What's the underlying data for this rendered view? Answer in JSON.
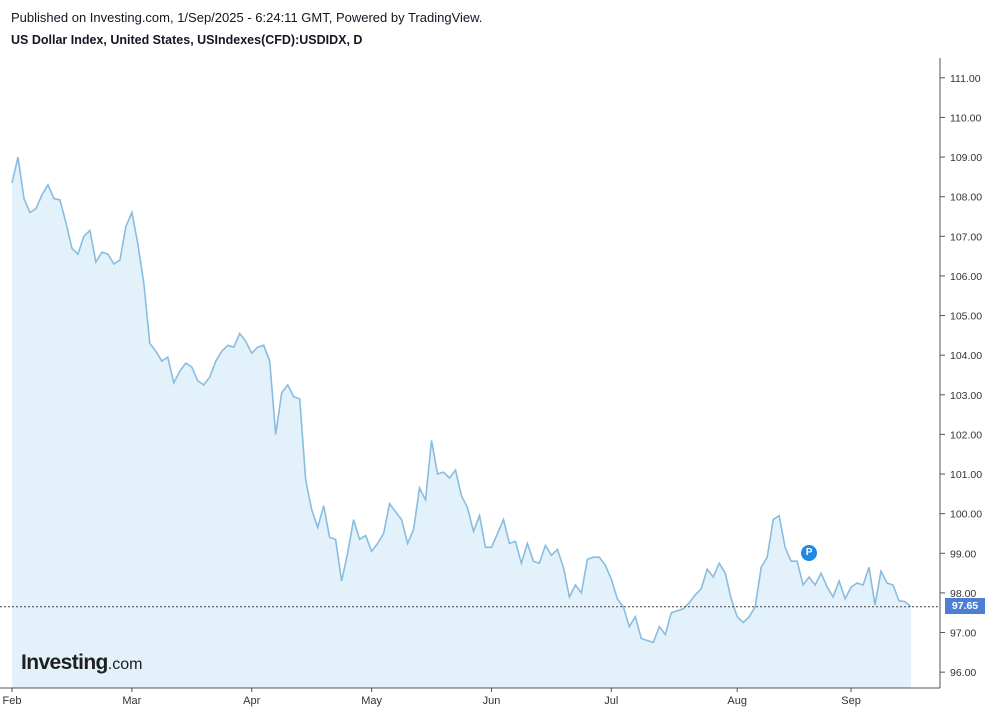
{
  "header": {
    "published": "Published on Investing.com, 1/Sep/2025 - 6:24:11 GMT, Powered by TradingView.",
    "title": "US Dollar Index, United States, USIndexes(CFD):USDIDX, D"
  },
  "logo": {
    "main": "Investing",
    "suffix": ".com"
  },
  "marker": {
    "label": "P"
  },
  "colors": {
    "line": "#88bde0",
    "fill": "#e3f1fa",
    "last_label_bg": "#4c7fd4",
    "marker": "#1e88e5"
  },
  "chart_data": {
    "type": "area",
    "ylim": [
      95.6,
      111.5
    ],
    "y_ticks": [
      "96.00",
      "97.00",
      "98.00",
      "99.00",
      "100.00",
      "101.00",
      "102.00",
      "103.00",
      "104.00",
      "105.00",
      "106.00",
      "107.00",
      "108.00",
      "109.00",
      "110.00",
      "111.00"
    ],
    "x_ticks": [
      {
        "label": "Feb",
        "index": 0
      },
      {
        "label": "Mar",
        "index": 20
      },
      {
        "label": "Apr",
        "index": 40
      },
      {
        "label": "May",
        "index": 60
      },
      {
        "label": "Jun",
        "index": 80
      },
      {
        "label": "Jul",
        "index": 100
      },
      {
        "label": "Aug",
        "index": 121
      },
      {
        "label": "Sep",
        "index": 140
      }
    ],
    "last_value": "97.65",
    "marker_index": 133,
    "marker_value": 99.0,
    "values": [
      108.35,
      109.0,
      107.95,
      107.6,
      107.7,
      108.05,
      108.3,
      107.95,
      107.92,
      107.35,
      106.7,
      106.55,
      107.0,
      107.15,
      106.35,
      106.6,
      106.55,
      106.3,
      106.4,
      107.25,
      107.6,
      106.8,
      105.8,
      104.3,
      104.1,
      103.85,
      103.95,
      103.3,
      103.6,
      103.8,
      103.7,
      103.35,
      103.25,
      103.45,
      103.85,
      104.1,
      104.25,
      104.2,
      104.55,
      104.35,
      104.05,
      104.2,
      104.25,
      103.85,
      102.0,
      103.05,
      103.25,
      102.95,
      102.9,
      100.85,
      100.1,
      99.65,
      100.2,
      99.4,
      99.35,
      98.3,
      99.0,
      99.85,
      99.35,
      99.45,
      99.05,
      99.25,
      99.5,
      100.25,
      100.05,
      99.85,
      99.25,
      99.6,
      100.65,
      100.35,
      101.85,
      101.0,
      101.05,
      100.9,
      101.1,
      100.45,
      100.15,
      99.55,
      99.95,
      99.15,
      99.15,
      99.5,
      99.85,
      99.25,
      99.3,
      98.75,
      99.25,
      98.8,
      98.75,
      99.2,
      98.95,
      99.1,
      98.65,
      97.9,
      98.2,
      98.0,
      98.85,
      98.9,
      98.9,
      98.7,
      98.35,
      97.85,
      97.65,
      97.15,
      97.4,
      96.85,
      96.8,
      96.75,
      97.15,
      96.95,
      97.5,
      97.55,
      97.6,
      97.75,
      97.95,
      98.1,
      98.6,
      98.4,
      98.75,
      98.5,
      97.85,
      97.4,
      97.25,
      97.4,
      97.65,
      98.65,
      98.9,
      99.85,
      99.95,
      99.15,
      98.8,
      98.8,
      98.2,
      98.4,
      98.2,
      98.5,
      98.15,
      97.9,
      98.3,
      97.85,
      98.15,
      98.25,
      98.2,
      98.65,
      97.7,
      98.55,
      98.25,
      98.2,
      97.8,
      97.78,
      97.65
    ]
  }
}
